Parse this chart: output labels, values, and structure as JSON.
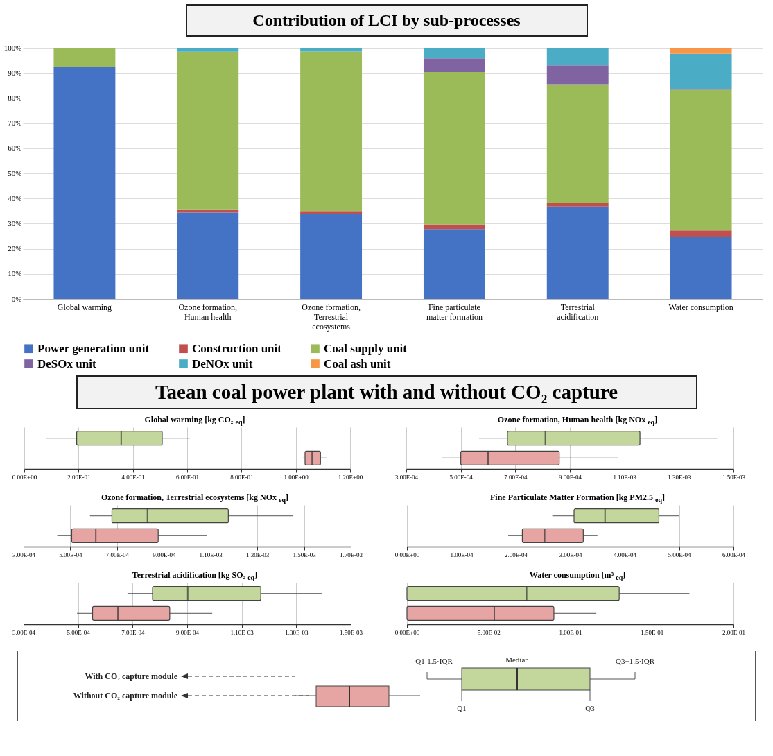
{
  "chart_data": [
    {
      "type": "bar",
      "title": "Contribution of LCI by sub-processes",
      "stacked": true,
      "grid": "y",
      "legend": "bottom",
      "categories": [
        "Global warming",
        "Ozone formation, Human health",
        "Ozone formation, Terrestrial ecosystems",
        "Fine particulate matter formation",
        "Terrestrial acidification",
        "Water consumption"
      ],
      "series": [
        {
          "name": "Power generation unit",
          "color": "#4472c4",
          "values": [
            92.5,
            34.4,
            34,
            27.8,
            36.8,
            24.7
          ]
        },
        {
          "name": "Construction unit",
          "color": "#c0504d",
          "values": [
            0,
            1,
            1,
            1.9,
            1.3,
            2.6
          ]
        },
        {
          "name": "Coal supply unit",
          "color": "#9bbb59",
          "values": [
            7.5,
            63,
            63.5,
            60.6,
            47.4,
            56
          ]
        },
        {
          "name": "DeSOx unit",
          "color": "#8064a2",
          "values": [
            0,
            0,
            0,
            5.5,
            7.5,
            0.4
          ]
        },
        {
          "name": "DeNOx unit",
          "color": "#4bacc6",
          "values": [
            0,
            1.6,
            1.5,
            4.2,
            7,
            13.9
          ]
        },
        {
          "name": "Coal ash unit",
          "color": "#f79646",
          "values": [
            0,
            0,
            0,
            0,
            0,
            2.4
          ]
        }
      ],
      "ylim": [
        0,
        100
      ],
      "yticks": [
        {
          "value": 0,
          "label": "0%"
        },
        {
          "value": 10,
          "label": "10%"
        },
        {
          "value": 20,
          "label": "20%"
        },
        {
          "value": 30,
          "label": "30%"
        },
        {
          "value": 40,
          "label": "40%"
        },
        {
          "value": 50,
          "label": "50%"
        },
        {
          "value": 60,
          "label": "60%"
        },
        {
          "value": 70,
          "label": "70%"
        },
        {
          "value": 80,
          "label": "80%"
        },
        {
          "value": 90,
          "label": "90%"
        },
        {
          "value": 100,
          "label": "100%"
        }
      ]
    },
    {
      "type": "other",
      "title": "Taean coal power plant with and without CO₂ capture"
    },
    {
      "type": "box",
      "title": "Global warming [kg CO₂ $_{eq}$]",
      "orientation": "horizontal",
      "grid": "x",
      "categories": [
        null
      ],
      "series": [
        {
          "color": "#c3d69b",
          "boxes": [
            {
              "low": 0.079,
              "q1": 0.193,
              "median": 0.357,
              "q3": 0.508,
              "high": 0.61
            }
          ]
        },
        {
          "color": "#e6a5a3",
          "boxes": [
            {
              "low": 1.027,
              "q1": 1.034,
              "median": 1.06,
              "q3": 1.091,
              "high": 1.115
            }
          ]
        }
      ],
      "xlim": [
        0,
        1.2
      ],
      "xticks": [
        {
          "value": 0,
          "label": "0.00E+00"
        },
        {
          "value": 0.2,
          "label": "2.00E-01"
        },
        {
          "value": 0.4,
          "label": "4.00E-01"
        },
        {
          "value": 0.6,
          "label": "6.00E-01"
        },
        {
          "value": 0.8,
          "label": "8.00E-01"
        },
        {
          "value": 1,
          "label": "1.00E+00"
        },
        {
          "value": 1.2,
          "label": "1.20E+00"
        }
      ]
    },
    {
      "type": "box",
      "title": "Ozone formation, Human health [kg NOx $_{eq}$]",
      "orientation": "horizontal",
      "grid": "x",
      "categories": [
        null
      ],
      "series": [
        {
          "color": "#c3d69b",
          "boxes": [
            {
              "low": 0.000567,
              "q1": 0.000671,
              "median": 0.00081,
              "q3": 0.001157,
              "high": 0.00144
            }
          ]
        },
        {
          "color": "#e6a5a3",
          "boxes": [
            {
              "low": 0.00043,
              "q1": 0.0005,
              "median": 0.0006,
              "q3": 0.000861,
              "high": 0.001076
            }
          ]
        }
      ],
      "xlim": [
        0.0003,
        0.0015
      ],
      "xticks": [
        {
          "value": 0.0003,
          "label": "3.00E-04"
        },
        {
          "value": 0.0005,
          "label": "5.00E-04"
        },
        {
          "value": 0.0007,
          "label": "7.00E-04"
        },
        {
          "value": 0.0009,
          "label": "9.00E-04"
        },
        {
          "value": 0.0011,
          "label": "1.10E-03"
        },
        {
          "value": 0.0013,
          "label": "1.30E-03"
        },
        {
          "value": 0.0015,
          "label": "1.50E-03"
        }
      ]
    },
    {
      "type": "box",
      "title": "Ozone formation, Terrestrial ecosystems [kg NOx $_{eq}$]",
      "orientation": "horizontal",
      "grid": "x",
      "categories": [
        null
      ],
      "series": [
        {
          "color": "#c3d69b",
          "boxes": [
            {
              "low": 0.000584,
              "q1": 0.000678,
              "median": 0.00083,
              "q3": 0.001176,
              "high": 0.001454
            }
          ]
        },
        {
          "color": "#e6a5a3",
          "boxes": [
            {
              "low": 0.000444,
              "q1": 0.000506,
              "median": 0.000609,
              "q3": 0.000876,
              "high": 0.001085
            }
          ]
        }
      ],
      "xlim": [
        0.0003,
        0.0017
      ],
      "xticks": [
        {
          "value": 0.0003,
          "label": "3.00E-04"
        },
        {
          "value": 0.0005,
          "label": "5.00E-04"
        },
        {
          "value": 0.0007,
          "label": "7.00E-04"
        },
        {
          "value": 0.0009,
          "label": "9.00E-04"
        },
        {
          "value": 0.0011,
          "label": "1.10E-03"
        },
        {
          "value": 0.0013,
          "label": "1.30E-03"
        },
        {
          "value": 0.0015,
          "label": "1.50E-03"
        },
        {
          "value": 0.0017,
          "label": "1.70E-03"
        }
      ]
    },
    {
      "type": "box",
      "title": "Fine Particulate Matter Formation [kg PM2.5 $_{eq}$]",
      "orientation": "horizontal",
      "grid": "x",
      "categories": [
        null
      ],
      "series": [
        {
          "color": "#c3d69b",
          "boxes": [
            {
              "low": 0.000267,
              "q1": 0.000307,
              "median": 0.000364,
              "q3": 0.000463,
              "high": 0.0005
            }
          ]
        },
        {
          "color": "#e6a5a3",
          "boxes": [
            {
              "low": 0.000186,
              "q1": 0.000212,
              "median": 0.000253,
              "q3": 0.000324,
              "high": 0.00035
            }
          ]
        }
      ],
      "xlim": [
        0,
        0.0006
      ],
      "xticks": [
        {
          "value": 0,
          "label": "0.00E+00"
        },
        {
          "value": 0.0001,
          "label": "1.00E-04"
        },
        {
          "value": 0.0002,
          "label": "2.00E-04"
        },
        {
          "value": 0.0003,
          "label": "3.00E-04"
        },
        {
          "value": 0.0004,
          "label": "4.00E-04"
        },
        {
          "value": 0.0005,
          "label": "5.00E-04"
        },
        {
          "value": 0.0006,
          "label": "6.00E-04"
        }
      ]
    },
    {
      "type": "box",
      "title": "Terrestrial acidification [kg SO₂ $_{eq}$]",
      "orientation": "horizontal",
      "grid": "x",
      "categories": [
        null
      ],
      "series": [
        {
          "color": "#c3d69b",
          "boxes": [
            {
              "low": 0.000681,
              "q1": 0.000773,
              "median": 0.000902,
              "q3": 0.00117,
              "high": 0.001393
            }
          ]
        },
        {
          "color": "#e6a5a3",
          "boxes": [
            {
              "low": 0.000496,
              "q1": 0.000553,
              "median": 0.000646,
              "q3": 0.000836,
              "high": 0.000992
            }
          ]
        }
      ],
      "xlim": [
        0.0003,
        0.0015
      ],
      "xticks": [
        {
          "value": 0.0003,
          "label": "3.00E-04"
        },
        {
          "value": 0.0005,
          "label": "5.00E-04"
        },
        {
          "value": 0.0007,
          "label": "7.00E-04"
        },
        {
          "value": 0.0009,
          "label": "9.00E-04"
        },
        {
          "value": 0.0011,
          "label": "1.10E-03"
        },
        {
          "value": 0.0013,
          "label": "1.30E-03"
        },
        {
          "value": 0.0015,
          "label": "1.50E-03"
        }
      ]
    },
    {
      "type": "box",
      "title": "Water consumption [m³ $_{eq}$]",
      "orientation": "horizontal",
      "grid": "x",
      "categories": [
        null
      ],
      "series": [
        {
          "color": "#c3d69b",
          "boxes": [
            {
              "low": 0,
              "q1": 0,
              "median": 0.0733,
              "q3": 0.13,
              "high": 0.173
            }
          ]
        },
        {
          "color": "#e6a5a3",
          "boxes": [
            {
              "low": 0,
              "q1": 0,
              "median": 0.0535,
              "q3": 0.09,
              "high": 0.116
            }
          ]
        }
      ],
      "xlim": [
        0,
        0.2
      ],
      "xticks": [
        {
          "value": 0,
          "label": "0.00E+00"
        },
        {
          "value": 0.05,
          "label": "5.00E-02"
        },
        {
          "value": 0.1,
          "label": "1.00E-01"
        },
        {
          "value": 0.15,
          "label": "1.50E-01"
        },
        {
          "value": 0.2,
          "label": "2.00E-01"
        }
      ]
    },
    {
      "type": "other",
      "annotations": [
        "With CO₂ capture module",
        "Without CO₂ capture module",
        "Q1-1.5·IQR",
        "Median",
        "Q3+1.5·IQR",
        "Q1",
        "Q3"
      ]
    }
  ]
}
